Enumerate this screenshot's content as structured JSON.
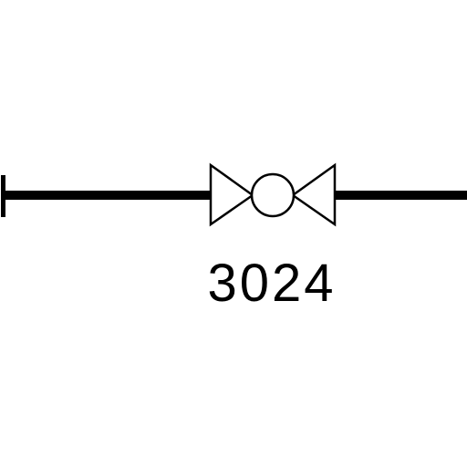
{
  "diagram": {
    "valve": {
      "tag": "3024",
      "symbol": "ball-valve-icon"
    },
    "colors": {
      "stroke": "#000000",
      "background": "#ffffff"
    }
  }
}
